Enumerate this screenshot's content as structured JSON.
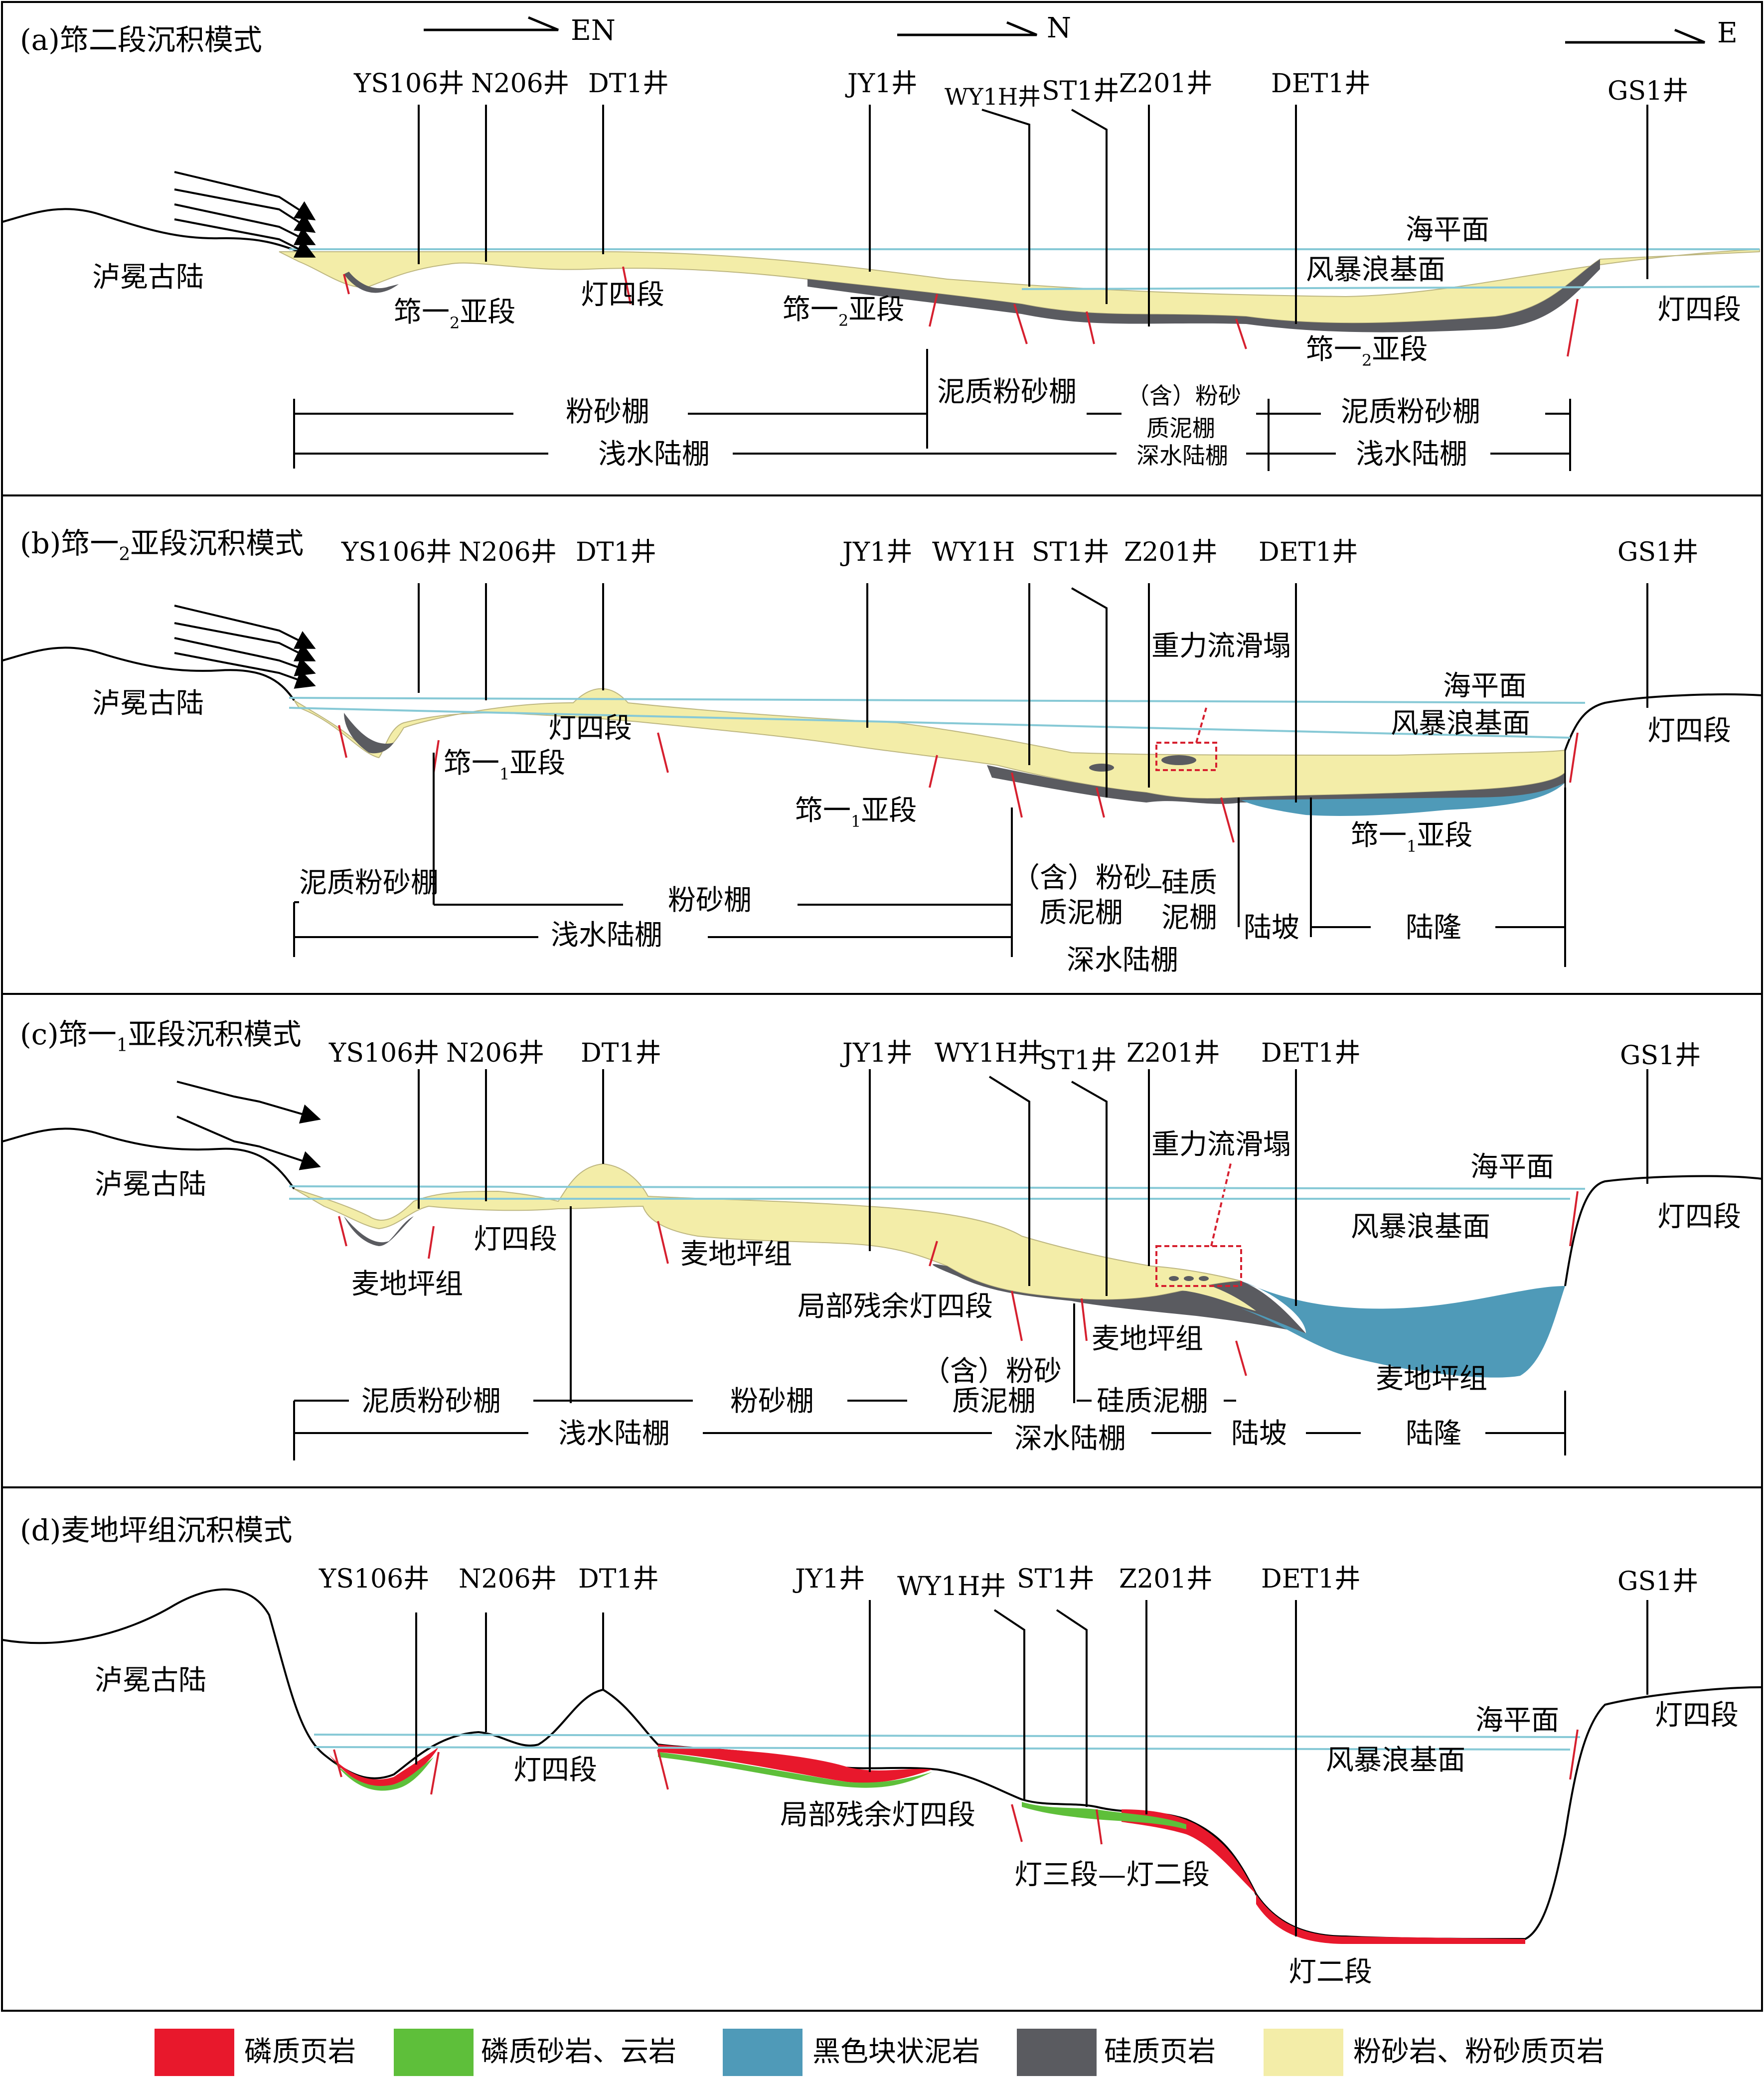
{
  "panels": [
    {
      "title": "(a)筇二段沉积模式",
      "direction": "EN",
      "wells": [
        "YS106井",
        "N206井",
        "DT1井",
        "JY1井",
        "WY1H井",
        "ST1井",
        "Z201井",
        "DET1井",
        "GS1井"
      ],
      "labels": {
        "land": "泸冕古陆",
        "sea_level": "海平面",
        "storm_base": "风暴浪基面",
        "dengsi_top": "灯四段",
        "dengsi_right": "灯四段",
        "unit1": "筇一",
        "unit1_sub": "2",
        "unit1_suffix": "亚段",
        "unit2": "筇一",
        "unit2_sub": "2",
        "unit2_suffix": "亚段",
        "unit3": "筇一",
        "unit3_sub": "2",
        "unit3_suffix": "亚段"
      },
      "zones1": [
        "粉砂棚",
        "泥质粉砂棚",
        "（含）粉砂",
        "质泥棚",
        "泥质粉砂棚"
      ],
      "zones2": [
        "浅水陆棚",
        "深水陆棚",
        "浅水陆棚"
      ]
    },
    {
      "title": "(b)筇一",
      "title_sub": "2",
      "title_suffix": "亚段沉积模式",
      "wells": [
        "YS106井",
        "N206井",
        "DT1井",
        "JY1井",
        "WY1H",
        "ST1井",
        "Z201井",
        "DET1井",
        "GS1井"
      ],
      "labels": {
        "land": "泸冕古陆",
        "sea_level": "海平面",
        "storm_base": "风暴浪基面",
        "gravity": "重力流滑塌",
        "dengsi_mid": "灯四段",
        "dengsi_right": "灯四段",
        "unit1": "筇一",
        "unit1_sub": "1",
        "unit1_suffix": "亚段",
        "unit2": "筇一",
        "unit2_sub": "1",
        "unit2_suffix": "亚段",
        "unit3": "筇一",
        "unit3_sub": "1",
        "unit3_suffix": "亚段"
      },
      "zones1": [
        "泥质粉砂棚",
        "粉砂棚",
        "（含）粉砂",
        "质泥棚",
        "硅质",
        "泥棚",
        "陆坡",
        "陆隆"
      ],
      "zones2": [
        "浅水陆棚",
        "深水陆棚"
      ]
    },
    {
      "title": "(c)筇一",
      "title_sub": "1",
      "title_suffix": "亚段沉积模式",
      "wells": [
        "YS106井",
        "N206井",
        "DT1井",
        "JY1井",
        "WY1H井",
        "ST1井",
        "Z201井",
        "DET1井",
        "GS1井"
      ],
      "labels": {
        "land": "泸冕古陆",
        "sea_level": "海平面",
        "storm_base": "风暴浪基面",
        "gravity": "重力流滑塌",
        "dengsi_mid": "灯四段",
        "dengsi_right": "灯四段",
        "mai1": "麦地坪组",
        "mai2": "麦地坪组",
        "mai3": "麦地坪组",
        "mai4": "麦地坪组",
        "residual": "局部残余灯四段"
      },
      "zones1": [
        "泥质粉砂棚",
        "粉砂棚",
        "（含）粉砂",
        "质泥棚",
        "硅质泥棚"
      ],
      "zones2": [
        "浅水陆棚",
        "深水陆棚",
        "陆坡",
        "陆隆"
      ]
    },
    {
      "title": "(d)麦地坪组沉积模式",
      "wells": [
        "YS106井",
        "N206井",
        "DT1井",
        "JY1井",
        "WY1H井",
        "ST1井",
        "Z201井",
        "DET1井",
        "GS1井"
      ],
      "labels": {
        "land": "泸冕古陆",
        "sea_level": "海平面",
        "storm_base": "风暴浪基面",
        "dengsi_mid": "灯四段",
        "dengsi_right": "灯四段",
        "residual": "局部残余灯四段",
        "deng32": "灯三段—灯二段",
        "deng2": "灯二段"
      }
    }
  ],
  "legend": [
    {
      "label": "磷质页岩",
      "color": "#e8182c"
    },
    {
      "label": "磷质砂岩、云岩",
      "color": "#5ebf3a"
    },
    {
      "label": "黑色块状泥岩",
      "color": "#4f9ab8"
    },
    {
      "label": "硅质页岩",
      "color": "#5a5b60"
    },
    {
      "label": "粉砂岩、粉砂质页岩",
      "color": "#f3eda8"
    }
  ],
  "colors": {
    "sea_line": "#87c9d6",
    "silt": "#f3eda8",
    "siliceous": "#5a5b60",
    "black_mud": "#4f9ab8",
    "phos_shale": "#e8182c",
    "phos_sand": "#5ebf3a",
    "fault": "#d6202f"
  }
}
